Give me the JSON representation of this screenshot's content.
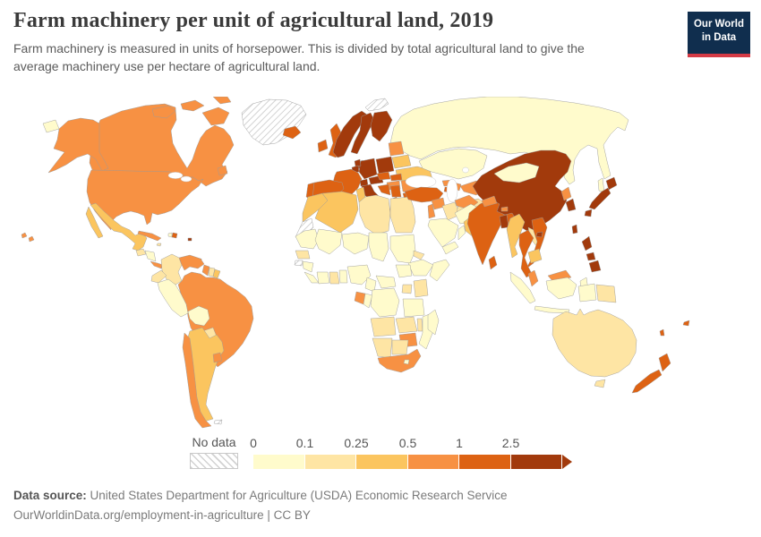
{
  "header": {
    "title": "Farm machinery per unit of agricultural land, 2019",
    "subtitle": "Farm machinery is measured in units of horsepower. This is divided by total agricultural land to give the average machinery use per hectare of agricultural land.",
    "logo": {
      "line1": "Our World",
      "line2": "in Data",
      "bg_color": "#102E4E",
      "accent_color": "#D43A45"
    }
  },
  "legend": {
    "no_data_label": "No data",
    "tick_labels": [
      "0",
      "0.1",
      "0.25",
      "0.5",
      "1",
      "2.5"
    ],
    "bin_colors": [
      "#FFFBCC",
      "#FEE5A4",
      "#FBC55F",
      "#F79143",
      "#DD6213",
      "#A23A0C"
    ]
  },
  "footer": {
    "source_label": "Data source:",
    "source_text": " United States Department for Agriculture (USDA) Economic Research Service",
    "note_text": "OurWorldinData.org/employment-in-agriculture | CC BY"
  },
  "chart_data": {
    "type": "heatmap",
    "subtype": "choropleth-world-map",
    "title": "Farm machinery per unit of agricultural land, 2019",
    "unit": "horsepower per hectare of agricultural land",
    "legend_position": "bottom",
    "bins": [
      {
        "label": "0–0.1",
        "color": "#FFFBCC"
      },
      {
        "label": "0.1–0.25",
        "color": "#FEE5A4"
      },
      {
        "label": "0.25–0.5",
        "color": "#FBC55F"
      },
      {
        "label": "0.5–1",
        "color": "#F79143"
      },
      {
        "label": "1–2.5",
        "color": "#DD6213"
      },
      {
        "label": "2.5+",
        "color": "#A23A0C"
      }
    ],
    "regions": {
      "greenland": "no-data",
      "western-sahara": "no-data",
      "guinea-bissau": "no-data",
      "falkland-islands": "no-data",
      "svalbard": "no-data",
      "russia": 0,
      "kazakhstan": 0,
      "mongolia": 0,
      "afghanistan": 0,
      "saudi-arabia": 0,
      "yemen": 0,
      "oman": 0,
      "peru": 0,
      "bolivia": 0,
      "haiti": 0,
      "honduras-nicaragua": 0,
      "mauritania": 0,
      "mali": 0,
      "niger": 0,
      "chad": 0,
      "sudan": 0,
      "south-sudan": 0,
      "ethiopia": 0,
      "somalia": 0,
      "guinea": 0,
      "sierra-leone-liberia": 0,
      "ivory-coast": 0,
      "togo-benin": 0,
      "nigeria": 0,
      "cameroon": 0,
      "central-african-republic": 0,
      "congo": 0,
      "drc": 0,
      "tanzania": 0,
      "mozambique": 0,
      "madagascar": 0,
      "lesotho": 0,
      "indonesia": 0,
      "libya": 1,
      "egypt": 1,
      "iraq": 1,
      "iran": 1,
      "senegal": 1,
      "ghana": 1,
      "eritrea": 1,
      "kenya": 1,
      "uganda": 1,
      "angola": 1,
      "zambia": 1,
      "malawi": 1,
      "namibia": 1,
      "botswana": 1,
      "colombia": 1,
      "ecuador": 1,
      "suriname": 1,
      "paraguay": 1,
      "guatemala": 1,
      "jamaica": 1,
      "laos": 1,
      "australia": 1,
      "papua-new-guinea": 1,
      "morocco": 2,
      "algeria": 2,
      "tunisia": 2,
      "mexico": 2,
      "argentina": 2,
      "french-guiana": 2,
      "pakistan": 2,
      "myanmar": 2,
      "cambodia": 2,
      "belarus": 2,
      "ukraine": 2,
      "united-states": 3,
      "canada": 3,
      "brazil": 3,
      "venezuela": 3,
      "guyana": 3,
      "chile": 3,
      "uruguay": 3,
      "costa-rica-panama": 3,
      "cuba": 3,
      "south-africa": 3,
      "zimbabwe": 3,
      "gabon": 3,
      "north-korea": 3,
      "baltic-states": 3,
      "syria": 3,
      "lebanon-israel-jordan": 3,
      "georgia": 3,
      "azerbaijan": 3,
      "turkmenistan": 3,
      "uzbekistan": 3,
      "kyrgyzstan": 3,
      "nepal": 3,
      "bhutan": 3,
      "hungary": 3,
      "romania": 3,
      "malaysia": 3,
      "spain": 4,
      "portugal": 4,
      "france": 4,
      "united-kingdom": 4,
      "ireland": 4,
      "iceland": 4,
      "turkey": 4,
      "india": 4,
      "sri-lanka": 4,
      "thailand": 4,
      "vietnam": 4,
      "new-zealand": 4,
      "fiji": 4,
      "vanuatu": 4,
      "czechia": 4,
      "slovakia": 4,
      "bulgaria": 4,
      "serbia": 4,
      "croatia-bosnia": 4,
      "albania": 4,
      "tajikistan": 4,
      "armenia": 4,
      "dominican-republic": 4,
      "trinidad": 4,
      "norway": 5,
      "sweden": 5,
      "finland": 5,
      "denmark": 5,
      "germany": 5,
      "poland": 5,
      "netherlands": 5,
      "belgium": 5,
      "switzerland": 5,
      "austria": 5,
      "italy": 5,
      "greece": 5,
      "china": 5,
      "taiwan": 5,
      "japan": 5,
      "south-korea": 5,
      "philippines": 5,
      "bangladesh": 5,
      "puerto-rico": 5
    }
  }
}
